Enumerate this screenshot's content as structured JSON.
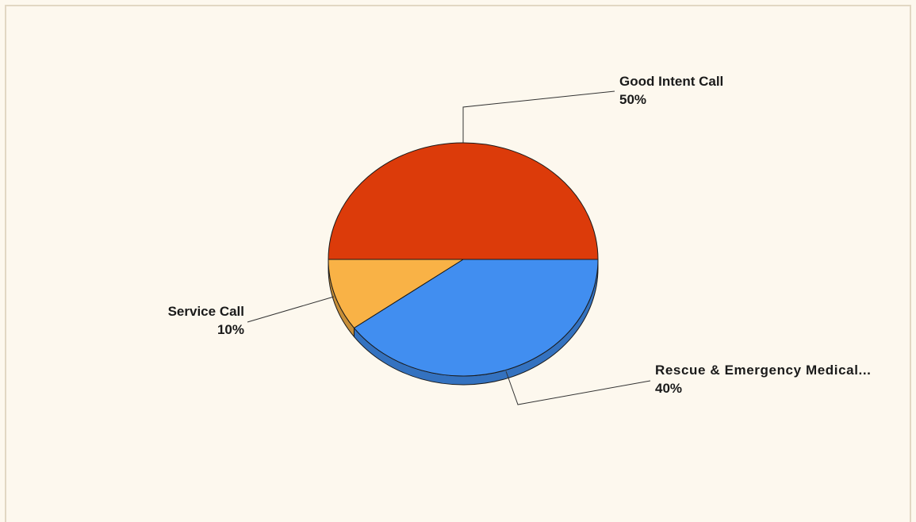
{
  "chart_data": {
    "type": "pie",
    "title": "",
    "slices": [
      {
        "label": "Good Intent Call",
        "value": 50,
        "value_label": "50%",
        "color": "#dc3b0a"
      },
      {
        "label": "Rescue & Emergency Medical...",
        "value": 40,
        "value_label": "40%",
        "color": "#418ef0"
      },
      {
        "label": "Service Call",
        "value": 10,
        "value_label": "10%",
        "color": "#f9b246"
      }
    ],
    "style": "3d-tilted",
    "legend": "none",
    "labels": "outside-with-leader-lines"
  }
}
